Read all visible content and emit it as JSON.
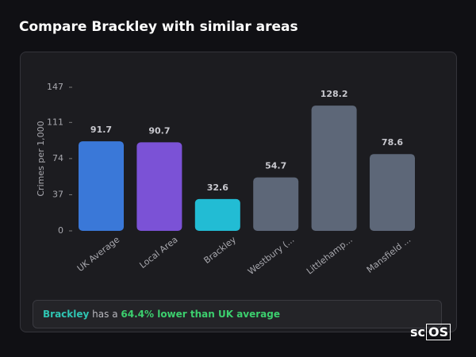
{
  "page_title": "Compare Brackley with similar areas",
  "chart_data": {
    "type": "bar",
    "y_label": "Crimes per 1,000",
    "categories": [
      "UK Average",
      "Local Area",
      "Brackley",
      "Westbury (...",
      "Littlehamp...",
      "Mansfield ..."
    ],
    "values": [
      91.7,
      90.7,
      32.6,
      54.7,
      128.2,
      78.6
    ],
    "colors": [
      "#3a78d8",
      "#7b52d6",
      "#22bcd4",
      "#5d6778",
      "#5d6778",
      "#5d6778"
    ],
    "ylim": [
      0,
      147
    ],
    "yticks": [
      0,
      37,
      74,
      111,
      147
    ]
  },
  "summary": {
    "place": "Brackley",
    "connector": "has a",
    "result": "64.4% lower than UK average"
  },
  "brand": {
    "prefix": "sc",
    "boxed": "OS"
  }
}
